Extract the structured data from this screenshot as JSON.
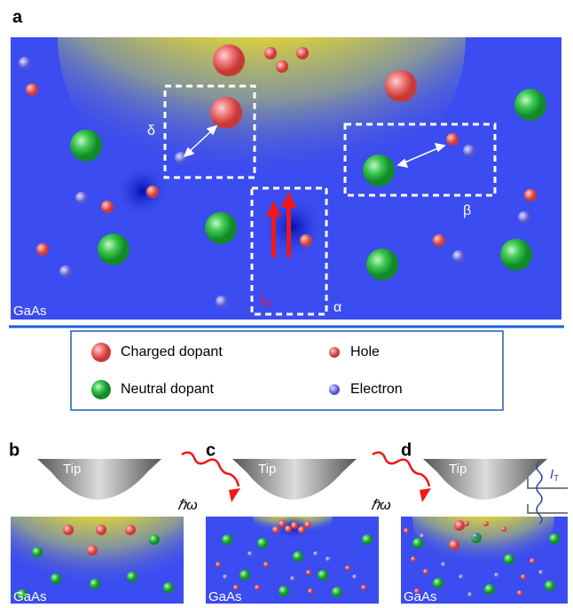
{
  "panels": {
    "a": "a",
    "b": "b",
    "c": "c",
    "d": "d"
  },
  "material": "GaAs",
  "regions": {
    "delta": "δ",
    "beta": "β",
    "alpha": "α"
  },
  "current_label": {
    "symbol": "I",
    "subscript": "H"
  },
  "legend": {
    "charged": "Charged dopant",
    "hole": "Hole",
    "neutral": "Neutral dopant",
    "electron": "Electron"
  },
  "tip": "Tip",
  "photon": "ℏω",
  "tunnel_current": {
    "symbol": "I",
    "subscript": "T"
  }
}
